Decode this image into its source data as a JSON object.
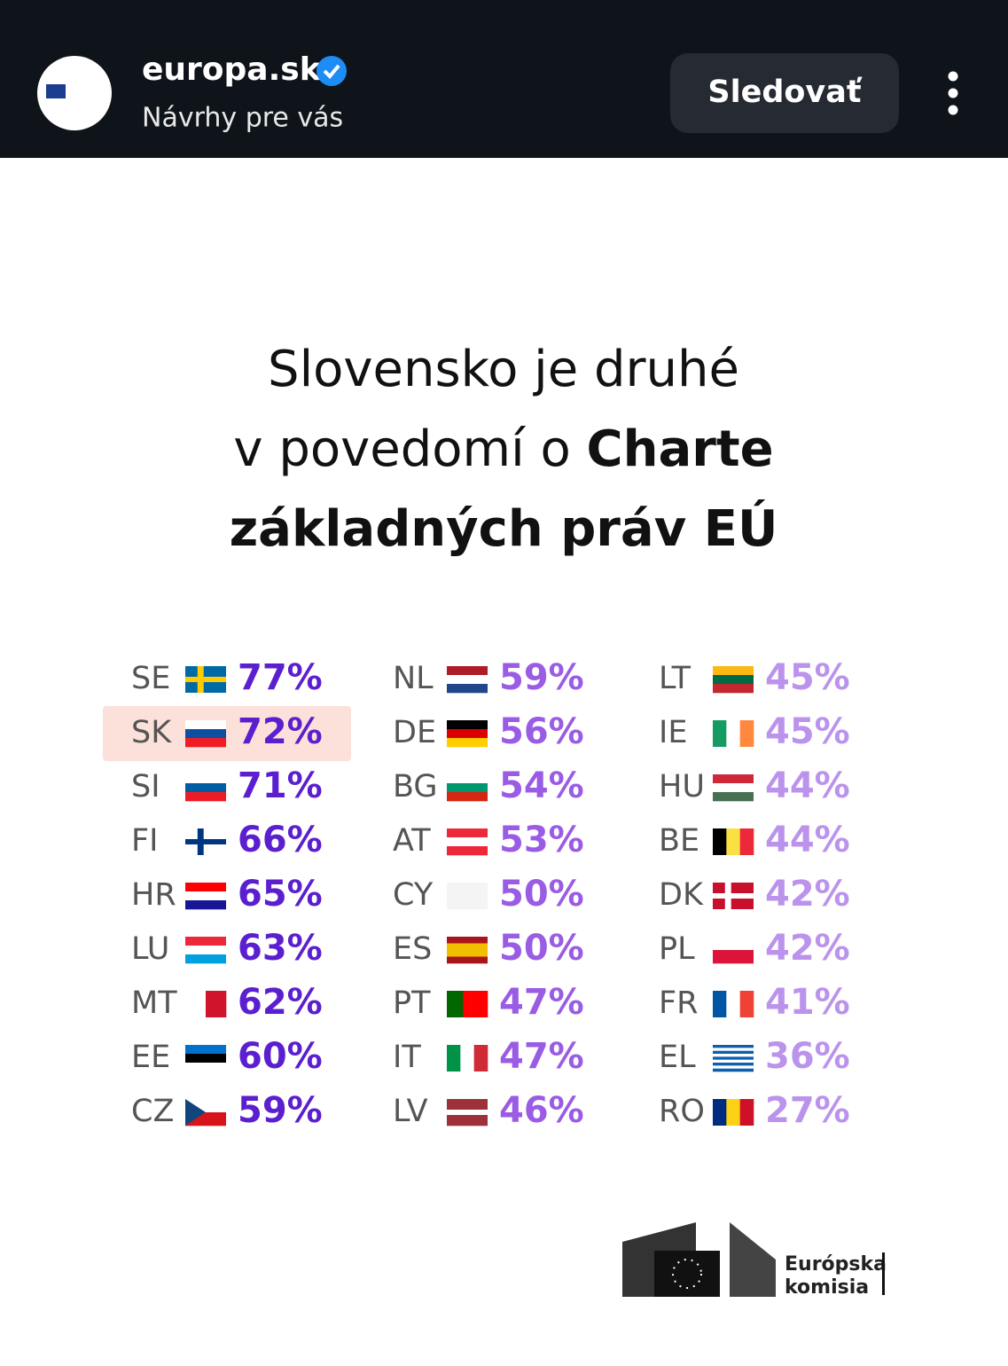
{
  "header": {
    "account": "europa.sk",
    "subtitle": "Návrhy pre vás",
    "follow_button": "Sledovať"
  },
  "post": {
    "title": {
      "line1": "Slovensko je druhé",
      "line2_regular": "v povedomí o ",
      "line2_bold": "Charte",
      "line3": "základných práv EÚ"
    },
    "columns": [
      [
        {
          "code": "SE",
          "value": "77%"
        },
        {
          "code": "SK",
          "value": "72%"
        },
        {
          "code": "SI",
          "value": "71%"
        },
        {
          "code": "FI",
          "value": "66%"
        },
        {
          "code": "HR",
          "value": "65%"
        },
        {
          "code": "LU",
          "value": "63%"
        },
        {
          "code": "MT",
          "value": "62%"
        },
        {
          "code": "EE",
          "value": "60%"
        },
        {
          "code": "CZ",
          "value": "59%"
        }
      ],
      [
        {
          "code": "NL",
          "value": "59%"
        },
        {
          "code": "DE",
          "value": "56%"
        },
        {
          "code": "BG",
          "value": "54%"
        },
        {
          "code": "AT",
          "value": "53%"
        },
        {
          "code": "CY",
          "value": "50%"
        },
        {
          "code": "ES",
          "value": "50%"
        },
        {
          "code": "PT",
          "value": "47%"
        },
        {
          "code": "IT",
          "value": "47%"
        },
        {
          "code": "LV",
          "value": "46%"
        }
      ],
      [
        {
          "code": "LT",
          "value": "45%"
        },
        {
          "code": "IE",
          "value": "45%"
        },
        {
          "code": "HU",
          "value": "44%"
        },
        {
          "code": "BE",
          "value": "44%"
        },
        {
          "code": "DK",
          "value": "42%"
        },
        {
          "code": "PL",
          "value": "42%"
        },
        {
          "code": "FR",
          "value": "41%"
        },
        {
          "code": "EL",
          "value": "36%"
        },
        {
          "code": "RO",
          "value": "27%"
        }
      ]
    ],
    "logo": {
      "line1": "Európska",
      "line2": "komisia"
    }
  }
}
